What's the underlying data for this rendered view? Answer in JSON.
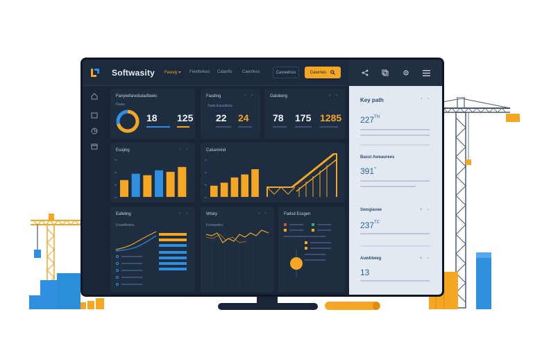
{
  "app": {
    "brand": "Softwasity"
  },
  "nav": {
    "items": [
      {
        "label": "Fewsly ▾",
        "active": true
      },
      {
        "label": "Fewitwiess",
        "active": false
      },
      {
        "label": "Calanfis",
        "active": false
      },
      {
        "label": "Caenfess",
        "active": false
      }
    ],
    "outline_button": "Caswelsss",
    "orange_button": "Cawmes"
  },
  "cards": {
    "summary": {
      "title": "Fanyiwfaredsdadfawis",
      "subtitle": "Fiwes",
      "value1": "18",
      "value2": "125"
    },
    "planning": {
      "title": "Fasding",
      "subtitle": "Twds Eaosifiens",
      "value1": "22",
      "value2": "24"
    },
    "gatoberg": {
      "title": "Gatoberg",
      "value1": "78",
      "value2": "175",
      "value3": "1285"
    },
    "bars": {
      "title": "Esojing"
    },
    "combo": {
      "title": "Calsemind"
    },
    "lines": {
      "title": "Eafeling",
      "subtitle": "Feasiffewss"
    },
    "weekly": {
      "title": "Wisky",
      "subtitle": "Foneasfies"
    },
    "legend": {
      "title": "Fadsd Essgen"
    }
  },
  "right_panel": {
    "sections": [
      {
        "title": "Key path",
        "value": "227",
        "sup": "TN"
      },
      {
        "title": "Basst Aweaurees",
        "value": "391",
        "sup": "≈"
      },
      {
        "title": "Swogiavee",
        "value": "237",
        "sup": "TC"
      },
      {
        "title": "Auwbbeeg",
        "value": "13",
        "sup": ""
      }
    ]
  },
  "chart_data": [
    {
      "type": "bar",
      "title": "Esojing",
      "categories": [
        "1",
        "2",
        "3",
        "4",
        "5",
        "6"
      ],
      "values": [
        45,
        62,
        58,
        71,
        67,
        80
      ],
      "ylim": [
        0,
        100
      ]
    },
    {
      "type": "bar",
      "title": "Calsemind",
      "categories": [
        "1",
        "2",
        "3",
        "4",
        "5"
      ],
      "values": [
        30,
        38,
        52,
        60,
        74
      ],
      "ylim": [
        0,
        100
      ]
    }
  ],
  "colors": {
    "accent": "#f5a623",
    "blue": "#2f8fe0",
    "navy": "#1a2638"
  }
}
